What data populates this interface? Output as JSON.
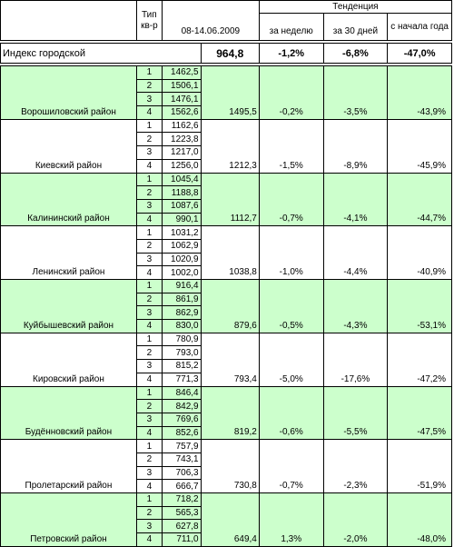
{
  "header": {
    "type_label": "Тип кв-р",
    "date_label": "08-14.06.2009",
    "trend_label": "Тенденция",
    "week_label": "за неделю",
    "month_label": "за 30 дней",
    "year_label": "с начала года"
  },
  "city_index": {
    "label": "Индекс городской",
    "value": "964,8",
    "week": "-1,2%",
    "month": "-6,8%",
    "year": "-47,0%"
  },
  "districts": [
    {
      "name": "Ворошиловский район",
      "color": "green",
      "avg": "1495,5",
      "week": "-0,2%",
      "month": "-3,5%",
      "year": "-43,9%",
      "rows": [
        {
          "type": "1",
          "price": "1462,5"
        },
        {
          "type": "2",
          "price": "1506,1"
        },
        {
          "type": "3",
          "price": "1476,1"
        },
        {
          "type": "4",
          "price": "1562,6"
        }
      ]
    },
    {
      "name": "Киевский район",
      "color": "white",
      "avg": "1212,3",
      "week": "-1,5%",
      "month": "-8,9%",
      "year": "-45,9%",
      "rows": [
        {
          "type": "1",
          "price": "1162,6"
        },
        {
          "type": "2",
          "price": "1223,8"
        },
        {
          "type": "3",
          "price": "1217,0"
        },
        {
          "type": "4",
          "price": "1256,0"
        }
      ]
    },
    {
      "name": "Калининский район",
      "color": "green",
      "avg": "1112,7",
      "week": "-0,7%",
      "month": "-4,1%",
      "year": "-44,7%",
      "rows": [
        {
          "type": "1",
          "price": "1045,4"
        },
        {
          "type": "2",
          "price": "1188,8"
        },
        {
          "type": "3",
          "price": "1087,6"
        },
        {
          "type": "4",
          "price": "990,1"
        }
      ]
    },
    {
      "name": "Ленинский район",
      "color": "white",
      "avg": "1038,8",
      "week": "-1,0%",
      "month": "-4,4%",
      "year": "-40,9%",
      "rows": [
        {
          "type": "1",
          "price": "1031,2"
        },
        {
          "type": "2",
          "price": "1062,9"
        },
        {
          "type": "3",
          "price": "1020,9"
        },
        {
          "type": "4",
          "price": "1002,0"
        }
      ]
    },
    {
      "name": "Куйбышевский район",
      "color": "green",
      "avg": "879,6",
      "week": "-0,5%",
      "month": "-4,3%",
      "year": "-53,1%",
      "rows": [
        {
          "type": "1",
          "price": "916,4"
        },
        {
          "type": "2",
          "price": "861,9"
        },
        {
          "type": "3",
          "price": "862,9"
        },
        {
          "type": "4",
          "price": "830,0"
        }
      ]
    },
    {
      "name": "Кировский район",
      "color": "white",
      "avg": "793,4",
      "week": "-5,0%",
      "month": "-17,6%",
      "year": "-47,2%",
      "rows": [
        {
          "type": "1",
          "price": "780,9"
        },
        {
          "type": "2",
          "price": "793,0"
        },
        {
          "type": "3",
          "price": "815,2"
        },
        {
          "type": "4",
          "price": "771,3"
        }
      ]
    },
    {
      "name": "Будённовский район",
      "color": "green",
      "avg": "819,2",
      "week": "-0,6%",
      "month": "-5,5%",
      "year": "-47,5%",
      "rows": [
        {
          "type": "1",
          "price": "846,4"
        },
        {
          "type": "2",
          "price": "842,9"
        },
        {
          "type": "3",
          "price": "769,6"
        },
        {
          "type": "4",
          "price": "852,6"
        }
      ]
    },
    {
      "name": "Пролетарский район",
      "color": "white",
      "avg": "730,8",
      "week": "-0,7%",
      "month": "-2,3%",
      "year": "-51,9%",
      "rows": [
        {
          "type": "1",
          "price": "757,9"
        },
        {
          "type": "2",
          "price": "743,1"
        },
        {
          "type": "3",
          "price": "706,3"
        },
        {
          "type": "4",
          "price": "666,7"
        }
      ]
    },
    {
      "name": "Петровский район",
      "color": "green",
      "avg": "649,4",
      "week": "1,3%",
      "month": "-2,0%",
      "year": "-48,0%",
      "rows": [
        {
          "type": "1",
          "price": "718,2"
        },
        {
          "type": "2",
          "price": "565,3"
        },
        {
          "type": "3",
          "price": "627,8"
        },
        {
          "type": "4",
          "price": "711,0"
        }
      ]
    }
  ]
}
